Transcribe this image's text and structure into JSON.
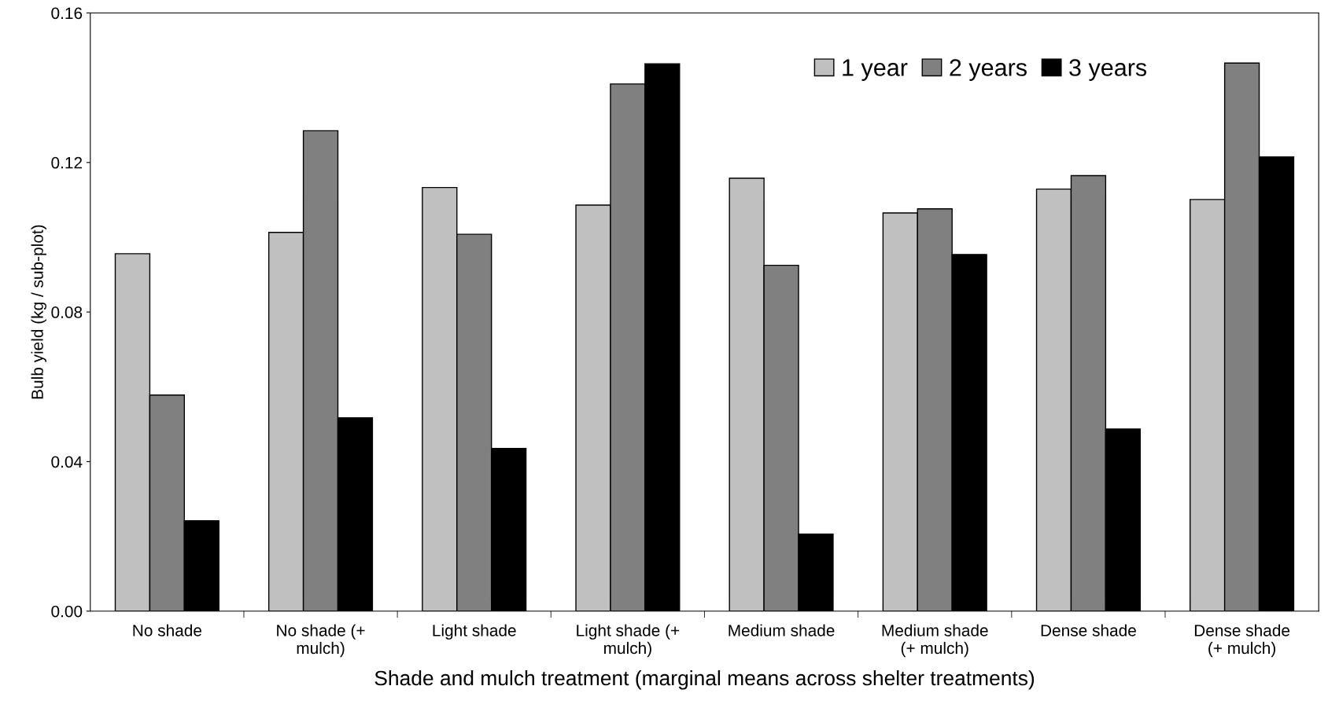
{
  "chart_data": {
    "type": "bar",
    "xlabel": "Shade and mulch treatment (marginal means across shelter treatments)",
    "ylabel": "Bulb yield (kg / sub-plot)",
    "categories": [
      "No shade",
      "No shade (+\nmulch)",
      "Light shade",
      "Light shade (+\nmulch)",
      "Medium shade",
      "Medium shade\n(+ mulch)",
      "Dense shade",
      "Dense shade\n(+ mulch)"
    ],
    "series": [
      {
        "name": "1 year",
        "color": "#c0c0c0",
        "values": [
          0.0956,
          0.1013,
          0.1133,
          0.1086,
          0.1158,
          0.1065,
          0.1129,
          0.1101
        ]
      },
      {
        "name": "2 years",
        "color": "#808080",
        "values": [
          0.0578,
          0.1285,
          0.1008,
          0.141,
          0.0925,
          0.1076,
          0.1165,
          0.1466
        ]
      },
      {
        "name": "3 years",
        "color": "#000000",
        "values": [
          0.0242,
          0.0517,
          0.0435,
          0.1464,
          0.0206,
          0.0954,
          0.0487,
          0.1215
        ]
      }
    ],
    "ylim": [
      0,
      0.16
    ],
    "yticks": [
      {
        "value": 0,
        "label": "0.00"
      },
      {
        "value": 0.04,
        "label": "0.04"
      },
      {
        "value": 0.08,
        "label": "0.08"
      },
      {
        "value": 0.12,
        "label": "0.12"
      },
      {
        "value": 0.16,
        "label": "0.16"
      }
    ],
    "grid": false,
    "legend": "top"
  }
}
